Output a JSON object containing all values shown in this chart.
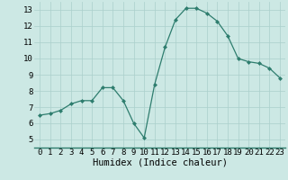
{
  "x": [
    0,
    1,
    2,
    3,
    4,
    5,
    6,
    7,
    8,
    9,
    10,
    11,
    12,
    13,
    14,
    15,
    16,
    17,
    18,
    19,
    20,
    21,
    22,
    23
  ],
  "y": [
    6.5,
    6.6,
    6.8,
    7.2,
    7.4,
    7.4,
    8.2,
    8.2,
    7.4,
    6.0,
    5.1,
    8.4,
    10.7,
    12.4,
    13.1,
    13.1,
    12.8,
    12.3,
    11.4,
    10.0,
    9.8,
    9.7,
    9.4,
    8.8
  ],
  "line_color": "#2e7d6e",
  "marker_color": "#2e7d6e",
  "bg_color": "#cce8e4",
  "grid_color": "#aacfcb",
  "xlabel": "Humidex (Indice chaleur)",
  "xlim": [
    -0.5,
    23.5
  ],
  "ylim": [
    4.5,
    13.5
  ],
  "yticks": [
    5,
    6,
    7,
    8,
    9,
    10,
    11,
    12,
    13
  ],
  "xticks": [
    0,
    1,
    2,
    3,
    4,
    5,
    6,
    7,
    8,
    9,
    10,
    11,
    12,
    13,
    14,
    15,
    16,
    17,
    18,
    19,
    20,
    21,
    22,
    23
  ],
  "tick_font_size": 6.5,
  "label_font_size": 7.5
}
